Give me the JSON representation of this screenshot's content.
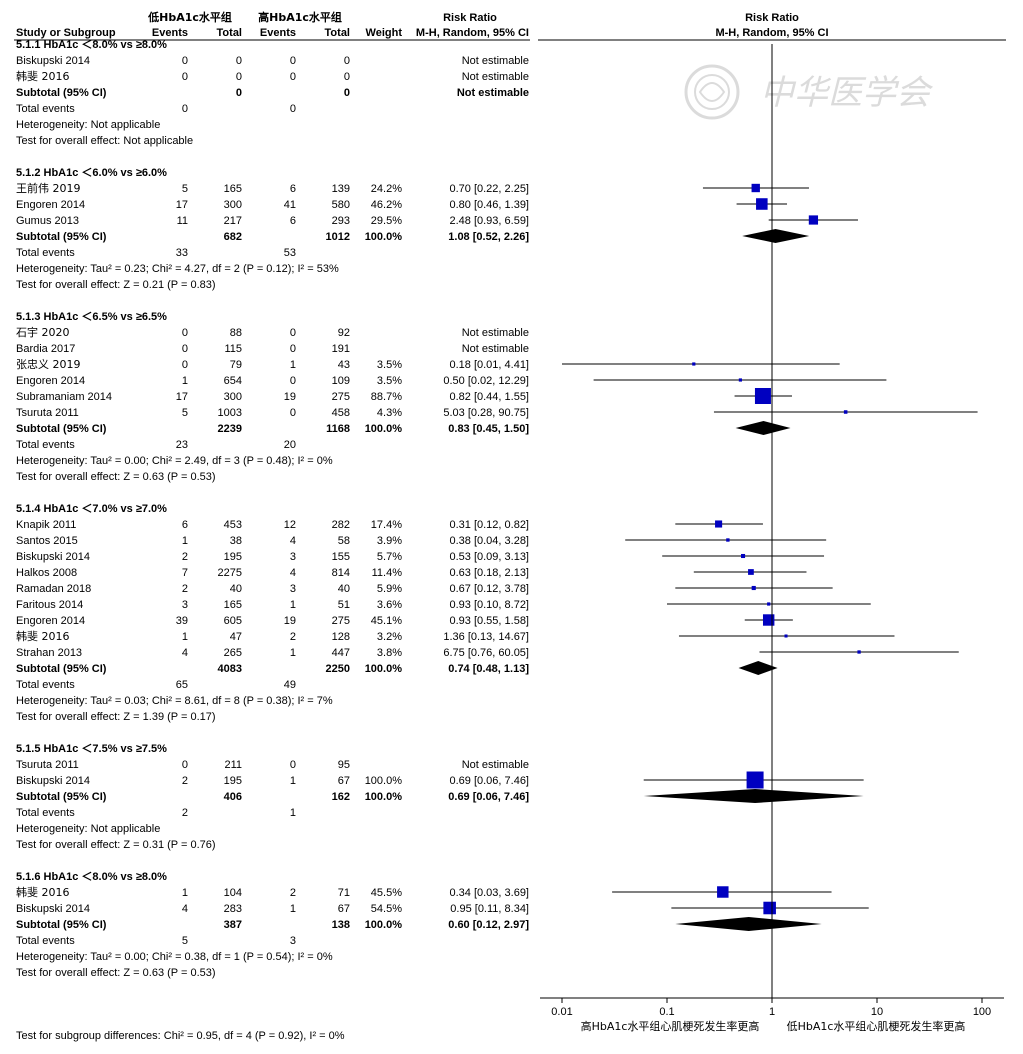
{
  "chart_data": {
    "type": "forest-plot",
    "scale": "log",
    "xlim": [
      0.01,
      100
    ],
    "null_value": 1,
    "header": {
      "group1": "低HbA1c水平组",
      "group2": "高HbA1c水平组",
      "study": "Study or Subgroup",
      "events": "Events",
      "total": "Total",
      "weight": "Weight",
      "rr_title": "Risk Ratio",
      "rr_method": "M-H, Random, 95% CI"
    },
    "ticks": [
      {
        "value": 0.01,
        "label": "0.01"
      },
      {
        "value": 0.1,
        "label": "0.1"
      },
      {
        "value": 1,
        "label": "1"
      },
      {
        "value": 10,
        "label": "10"
      },
      {
        "value": 100,
        "label": "100"
      }
    ],
    "favours_left": "高HbA1c水平组心肌梗死发生率更高",
    "favours_right": "低HbA1c水平组心肌梗死发生率更高",
    "watermark": "中华医学会",
    "subgroup_test": "Test for subgroup differences: Chi² = 0.95, df = 4 (P = 0.92), I² = 0%",
    "subgroups": [
      {
        "title": "5.1.1 HbA1c ＜8.0% vs ≥8.0%",
        "studies": [
          {
            "name": "Biskupski 2014",
            "e1": "0",
            "t1": "0",
            "e2": "0",
            "t2": "0",
            "weight": "",
            "rr_text": "Not estimable",
            "rr": null,
            "lo": null,
            "hi": null
          },
          {
            "name": "韩斐 2016",
            "e1": "0",
            "t1": "0",
            "e2": "0",
            "t2": "0",
            "weight": "",
            "rr_text": "Not estimable",
            "rr": null,
            "lo": null,
            "hi": null
          }
        ],
        "subtotal": {
          "label": "Subtotal (95% CI)",
          "t1": "0",
          "t2": "0",
          "weight": "",
          "rr_text": "Not estimable",
          "rr": null,
          "lo": null,
          "hi": null
        },
        "total_events": {
          "label": "Total events",
          "e1": "0",
          "e2": "0"
        },
        "heterogeneity": "Heterogeneity: Not applicable",
        "overall": "Test for overall effect: Not applicable"
      },
      {
        "title": "5.1.2 HbA1c ＜6.0% vs ≥6.0%",
        "studies": [
          {
            "name": "王前伟 2019",
            "e1": "5",
            "t1": "165",
            "e2": "6",
            "t2": "139",
            "weight": "24.2%",
            "rr_text": "0.70 [0.22, 2.25]",
            "rr": 0.7,
            "lo": 0.22,
            "hi": 2.25,
            "w": 24.2
          },
          {
            "name": "Engoren 2014",
            "e1": "17",
            "t1": "300",
            "e2": "41",
            "t2": "580",
            "weight": "46.2%",
            "rr_text": "0.80 [0.46, 1.39]",
            "rr": 0.8,
            "lo": 0.46,
            "hi": 1.39,
            "w": 46.2
          },
          {
            "name": "Gumus 2013",
            "e1": "11",
            "t1": "217",
            "e2": "6",
            "t2": "293",
            "weight": "29.5%",
            "rr_text": "2.48 [0.93, 6.59]",
            "rr": 2.48,
            "lo": 0.93,
            "hi": 6.59,
            "w": 29.5
          }
        ],
        "subtotal": {
          "label": "Subtotal (95% CI)",
          "t1": "682",
          "t2": "1012",
          "weight": "100.0%",
          "rr_text": "1.08 [0.52, 2.26]",
          "rr": 1.08,
          "lo": 0.52,
          "hi": 2.26
        },
        "total_events": {
          "label": "Total events",
          "e1": "33",
          "e2": "53"
        },
        "heterogeneity": "Heterogeneity: Tau² = 0.23; Chi² = 4.27, df = 2 (P = 0.12); I² = 53%",
        "overall": "Test for overall effect: Z = 0.21 (P = 0.83)"
      },
      {
        "title": "5.1.3 HbA1c ＜6.5% vs ≥6.5%",
        "studies": [
          {
            "name": "石宇 2020",
            "e1": "0",
            "t1": "88",
            "e2": "0",
            "t2": "92",
            "weight": "",
            "rr_text": "Not estimable",
            "rr": null,
            "lo": null,
            "hi": null
          },
          {
            "name": "Bardia 2017",
            "e1": "0",
            "t1": "115",
            "e2": "0",
            "t2": "191",
            "weight": "",
            "rr_text": "Not estimable",
            "rr": null,
            "lo": null,
            "hi": null
          },
          {
            "name": "张忠义 2019",
            "e1": "0",
            "t1": "79",
            "e2": "1",
            "t2": "43",
            "weight": "3.5%",
            "rr_text": "0.18 [0.01, 4.41]",
            "rr": 0.18,
            "lo": 0.01,
            "hi": 4.41,
            "w": 3.5
          },
          {
            "name": "Engoren 2014",
            "e1": "1",
            "t1": "654",
            "e2": "0",
            "t2": "109",
            "weight": "3.5%",
            "rr_text": "0.50 [0.02, 12.29]",
            "rr": 0.5,
            "lo": 0.02,
            "hi": 12.29,
            "w": 3.5
          },
          {
            "name": "Subramaniam 2014",
            "e1": "17",
            "t1": "300",
            "e2": "19",
            "t2": "275",
            "weight": "88.7%",
            "rr_text": "0.82 [0.44, 1.55]",
            "rr": 0.82,
            "lo": 0.44,
            "hi": 1.55,
            "w": 88.7
          },
          {
            "name": "Tsuruta 2011",
            "e1": "5",
            "t1": "1003",
            "e2": "0",
            "t2": "458",
            "weight": "4.3%",
            "rr_text": "5.03 [0.28, 90.75]",
            "rr": 5.03,
            "lo": 0.28,
            "hi": 90.75,
            "w": 4.3
          }
        ],
        "subtotal": {
          "label": "Subtotal (95% CI)",
          "t1": "2239",
          "t2": "1168",
          "weight": "100.0%",
          "rr_text": "0.83 [0.45, 1.50]",
          "rr": 0.83,
          "lo": 0.45,
          "hi": 1.5
        },
        "total_events": {
          "label": "Total events",
          "e1": "23",
          "e2": "20"
        },
        "heterogeneity": "Heterogeneity: Tau² = 0.00; Chi² = 2.49, df = 3 (P = 0.48); I² = 0%",
        "overall": "Test for overall effect: Z = 0.63 (P = 0.53)"
      },
      {
        "title": "5.1.4 HbA1c ＜7.0% vs ≥7.0%",
        "studies": [
          {
            "name": "Knapik 2011",
            "e1": "6",
            "t1": "453",
            "e2": "12",
            "t2": "282",
            "weight": "17.4%",
            "rr_text": "0.31 [0.12, 0.82]",
            "rr": 0.31,
            "lo": 0.12,
            "hi": 0.82,
            "w": 17.4
          },
          {
            "name": "Santos 2015",
            "e1": "1",
            "t1": "38",
            "e2": "4",
            "t2": "58",
            "weight": "3.9%",
            "rr_text": "0.38 [0.04, 3.28]",
            "rr": 0.38,
            "lo": 0.04,
            "hi": 3.28,
            "w": 3.9
          },
          {
            "name": "Biskupski 2014",
            "e1": "2",
            "t1": "195",
            "e2": "3",
            "t2": "155",
            "weight": "5.7%",
            "rr_text": "0.53 [0.09, 3.13]",
            "rr": 0.53,
            "lo": 0.09,
            "hi": 3.13,
            "w": 5.7
          },
          {
            "name": "Halkos 2008",
            "e1": "7",
            "t1": "2275",
            "e2": "4",
            "t2": "814",
            "weight": "11.4%",
            "rr_text": "0.63 [0.18, 2.13]",
            "rr": 0.63,
            "lo": 0.18,
            "hi": 2.13,
            "w": 11.4
          },
          {
            "name": "Ramadan 2018",
            "e1": "2",
            "t1": "40",
            "e2": "3",
            "t2": "40",
            "weight": "5.9%",
            "rr_text": "0.67 [0.12, 3.78]",
            "rr": 0.67,
            "lo": 0.12,
            "hi": 3.78,
            "w": 5.9
          },
          {
            "name": "Faritous 2014",
            "e1": "3",
            "t1": "165",
            "e2": "1",
            "t2": "51",
            "weight": "3.6%",
            "rr_text": "0.93 [0.10, 8.72]",
            "rr": 0.93,
            "lo": 0.1,
            "hi": 8.72,
            "w": 3.6
          },
          {
            "name": "Engoren 2014",
            "e1": "39",
            "t1": "605",
            "e2": "19",
            "t2": "275",
            "weight": "45.1%",
            "rr_text": "0.93 [0.55, 1.58]",
            "rr": 0.93,
            "lo": 0.55,
            "hi": 1.58,
            "w": 45.1
          },
          {
            "name": "韩斐 2016",
            "e1": "1",
            "t1": "47",
            "e2": "2",
            "t2": "128",
            "weight": "3.2%",
            "rr_text": "1.36 [0.13, 14.67]",
            "rr": 1.36,
            "lo": 0.13,
            "hi": 14.67,
            "w": 3.2
          },
          {
            "name": "Strahan 2013",
            "e1": "4",
            "t1": "265",
            "e2": "1",
            "t2": "447",
            "weight": "3.8%",
            "rr_text": "6.75 [0.76, 60.05]",
            "rr": 6.75,
            "lo": 0.76,
            "hi": 60.05,
            "w": 3.8
          }
        ],
        "subtotal": {
          "label": "Subtotal (95% CI)",
          "t1": "4083",
          "t2": "2250",
          "weight": "100.0%",
          "rr_text": "0.74 [0.48, 1.13]",
          "rr": 0.74,
          "lo": 0.48,
          "hi": 1.13
        },
        "total_events": {
          "label": "Total events",
          "e1": "65",
          "e2": "49"
        },
        "heterogeneity": "Heterogeneity: Tau² = 0.03; Chi² = 8.61, df = 8 (P = 0.38); I² = 7%",
        "overall": "Test for overall effect: Z = 1.39 (P = 0.17)"
      },
      {
        "title": "5.1.5 HbA1c ＜7.5% vs ≥7.5%",
        "studies": [
          {
            "name": "Tsuruta 2011",
            "e1": "0",
            "t1": "211",
            "e2": "0",
            "t2": "95",
            "weight": "",
            "rr_text": "Not estimable",
            "rr": null,
            "lo": null,
            "hi": null
          },
          {
            "name": "Biskupski 2014",
            "e1": "2",
            "t1": "195",
            "e2": "1",
            "t2": "67",
            "weight": "100.0%",
            "rr_text": "0.69 [0.06, 7.46]",
            "rr": 0.69,
            "lo": 0.06,
            "hi": 7.46,
            "w": 100.0
          }
        ],
        "subtotal": {
          "label": "Subtotal (95% CI)",
          "t1": "406",
          "t2": "162",
          "weight": "100.0%",
          "rr_text": "0.69 [0.06, 7.46]",
          "rr": 0.69,
          "lo": 0.06,
          "hi": 7.46
        },
        "total_events": {
          "label": "Total events",
          "e1": "2",
          "e2": "1"
        },
        "heterogeneity": "Heterogeneity: Not applicable",
        "overall": "Test for overall effect: Z = 0.31 (P = 0.76)"
      },
      {
        "title": "5.1.6 HbA1c ＜8.0% vs ≥8.0%",
        "studies": [
          {
            "name": "韩斐 2016",
            "e1": "1",
            "t1": "104",
            "e2": "2",
            "t2": "71",
            "weight": "45.5%",
            "rr_text": "0.34 [0.03, 3.69]",
            "rr": 0.34,
            "lo": 0.03,
            "hi": 3.69,
            "w": 45.5
          },
          {
            "name": "Biskupski 2014",
            "e1": "4",
            "t1": "283",
            "e2": "1",
            "t2": "67",
            "weight": "54.5%",
            "rr_text": "0.95 [0.11, 8.34]",
            "rr": 0.95,
            "lo": 0.11,
            "hi": 8.34,
            "w": 54.5
          }
        ],
        "subtotal": {
          "label": "Subtotal (95% CI)",
          "t1": "387",
          "t2": "138",
          "weight": "100.0%",
          "rr_text": "0.60 [0.12, 2.97]",
          "rr": 0.6,
          "lo": 0.12,
          "hi": 2.97
        },
        "total_events": {
          "label": "Total events",
          "e1": "5",
          "e2": "3"
        },
        "heterogeneity": "Heterogeneity: Tau² = 0.00; Chi² = 0.38, df = 1 (P = 0.54); I² = 0%",
        "overall": "Test for overall effect: Z = 0.63 (P = 0.53)"
      }
    ]
  }
}
